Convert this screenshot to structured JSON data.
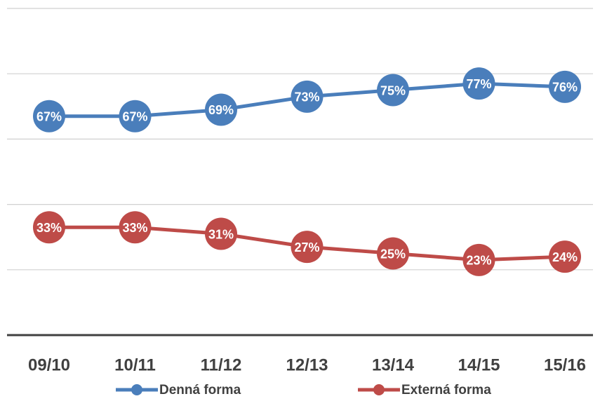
{
  "chart_data": {
    "type": "line",
    "categories": [
      "09/10",
      "10/11",
      "11/12",
      "12/13",
      "13/14",
      "14/15",
      "15/16"
    ],
    "series": [
      {
        "name": "Denná forma",
        "color": "#4a7ebb",
        "values": [
          67,
          67,
          69,
          73,
          75,
          77,
          76
        ],
        "value_labels": [
          "67%",
          "67%",
          "69%",
          "73%",
          "75%",
          "77%",
          "76%"
        ]
      },
      {
        "name": "Externá forma",
        "color": "#be4b48",
        "values": [
          33,
          33,
          31,
          27,
          25,
          23,
          24
        ],
        "value_labels": [
          "33%",
          "33%",
          "31%",
          "27%",
          "25%",
          "23%",
          "24%"
        ]
      }
    ],
    "ylim": [
      0,
      100
    ],
    "yticks": [
      0,
      20,
      40,
      60,
      80,
      100
    ],
    "grid": true,
    "legend": "bottom"
  }
}
